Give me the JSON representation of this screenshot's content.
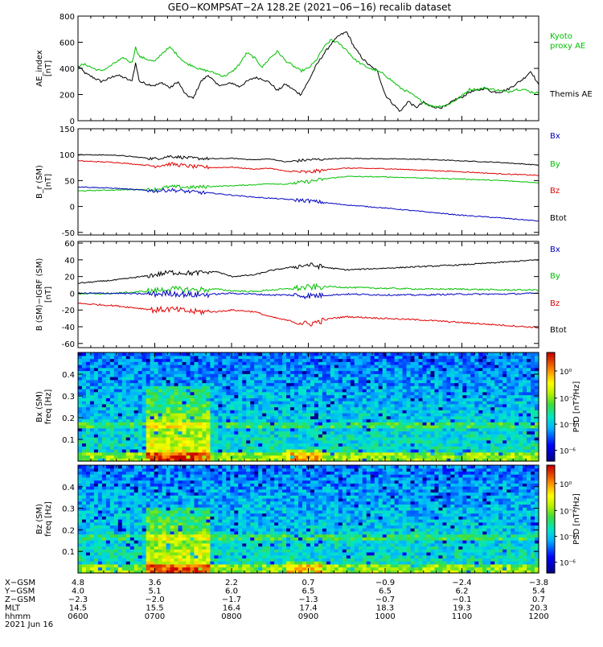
{
  "title": "GEO−KOMPSAT−2A 128.2E (2021−06−16) recalib dataset",
  "colors": {
    "black": "#000000",
    "green": "#00c000",
    "red": "#e00000",
    "blue": "#0000c0"
  },
  "panels": [
    {
      "id": "ae",
      "ylabel_lines": [
        "AE_index",
        "[nT]"
      ],
      "yticks": [
        0,
        200,
        400,
        600,
        800
      ],
      "ylim": [
        0,
        800
      ],
      "legend": [
        {
          "text": "Kyoto",
          "color": "#00c000"
        },
        {
          "text": "proxy AE",
          "color": "#00c000"
        },
        {
          "text": "Themis AE",
          "color": "#000000"
        }
      ]
    },
    {
      "id": "b",
      "ylabel_lines": [
        "B_r (SM)",
        "[nT]"
      ],
      "yticks": [
        -50,
        0,
        50,
        100,
        150
      ],
      "ylim": [
        -55,
        150
      ],
      "legend": [
        {
          "text": "Bx",
          "color": "#0000c0"
        },
        {
          "text": "By",
          "color": "#00c000"
        },
        {
          "text": "Bz",
          "color": "#e00000"
        },
        {
          "text": "Btot",
          "color": "#000000"
        }
      ]
    },
    {
      "id": "db",
      "ylabel_lines": [
        "B (SM)−IGRF (SM)",
        "[nT]"
      ],
      "yticks": [
        -60,
        -40,
        -20,
        0,
        20,
        40,
        60
      ],
      "ylim": [
        -65,
        62
      ],
      "legend": [
        {
          "text": "Bx",
          "color": "#0000c0"
        },
        {
          "text": "By",
          "color": "#00c000"
        },
        {
          "text": "Bz",
          "color": "#e00000"
        },
        {
          "text": "Btot",
          "color": "#000000"
        }
      ]
    },
    {
      "id": "specx",
      "ylabel_lines": [
        "Bx (SM)",
        "freq [Hz]"
      ],
      "yticks": [
        0.1,
        0.2,
        0.3,
        0.4
      ],
      "ylim": [
        0,
        0.5
      ],
      "cbar_label": "PSD [nT²/Hz]",
      "cbar_ticks": [
        "10⁰",
        "10⁻²",
        "10⁻⁴",
        "10⁻⁶"
      ]
    },
    {
      "id": "specz",
      "ylabel_lines": [
        "Bz (SM)",
        "freq [Hz]"
      ],
      "yticks": [
        0.1,
        0.2,
        0.3,
        0.4
      ],
      "ylim": [
        0,
        0.5
      ],
      "cbar_label": "PSD [nT²/Hz]",
      "cbar_ticks": [
        "10⁰",
        "10⁻²",
        "10⁻⁴",
        "10⁻⁶"
      ]
    }
  ],
  "ephemeris": {
    "rows": [
      {
        "label": "X−GSM",
        "values": [
          "4.8",
          "3.6",
          "2.2",
          "0.7",
          "−0.9",
          "−2.4",
          "−3.8"
        ]
      },
      {
        "label": "Y−GSM",
        "values": [
          "4.0",
          "5.1",
          "6.0",
          "6.5",
          "6.5",
          "6.2",
          "5.4"
        ]
      },
      {
        "label": "Z−GSM",
        "values": [
          "−2.3",
          "−2.0",
          "−1.7",
          "−1.3",
          "−0.7",
          "−0.1",
          "0.7"
        ]
      },
      {
        "label": "MLT",
        "values": [
          "14.5",
          "15.5",
          "16.4",
          "17.4",
          "18.3",
          "19.3",
          "20.3"
        ]
      },
      {
        "label": "hhmm",
        "values": [
          "0600",
          "0700",
          "0800",
          "0900",
          "1000",
          "1100",
          "1200"
        ]
      }
    ],
    "date": "2021 Jun 16"
  },
  "chart_data": [
    {
      "type": "line",
      "id": "ae",
      "x_hours": [
        6.0,
        6.1,
        6.2,
        6.3,
        6.4,
        6.5,
        6.6,
        6.7,
        6.75,
        6.8,
        6.9,
        7.0,
        7.1,
        7.2,
        7.3,
        7.4,
        7.5,
        7.6,
        7.7,
        7.8,
        7.9,
        8.0,
        8.1,
        8.2,
        8.3,
        8.4,
        8.5,
        8.6,
        8.7,
        8.8,
        8.9,
        9.0,
        9.1,
        9.2,
        9.3,
        9.4,
        9.5,
        9.6,
        9.7,
        9.8,
        9.9,
        10.0,
        10.1,
        10.2,
        10.3,
        10.4,
        10.5,
        10.6,
        10.7,
        10.8,
        10.9,
        11.0,
        11.1,
        11.2,
        11.3,
        11.4,
        11.5,
        11.6,
        11.7,
        11.8,
        11.9,
        12.0
      ],
      "series": [
        {
          "name": "Themis AE",
          "color": "#000000",
          "values": [
            420,
            360,
            330,
            300,
            320,
            350,
            330,
            300,
            440,
            300,
            280,
            270,
            290,
            250,
            300,
            200,
            170,
            300,
            350,
            280,
            270,
            290,
            260,
            300,
            330,
            320,
            290,
            230,
            280,
            240,
            200,
            300,
            420,
            510,
            590,
            650,
            680,
            560,
            480,
            420,
            380,
            200,
            130,
            70,
            150,
            100,
            140,
            110,
            100,
            110,
            160,
            180,
            220,
            230,
            250,
            220,
            220,
            240,
            280,
            320,
            380,
            270
          ]
        },
        {
          "name": "Kyoto proxy AE",
          "color": "#00c000",
          "values": [
            420,
            430,
            400,
            380,
            410,
            450,
            480,
            440,
            560,
            490,
            470,
            450,
            520,
            560,
            500,
            440,
            420,
            390,
            380,
            360,
            340,
            370,
            430,
            520,
            480,
            410,
            480,
            530,
            460,
            420,
            380,
            400,
            460,
            560,
            620,
            590,
            540,
            470,
            430,
            400,
            380,
            350,
            300,
            250,
            220,
            180,
            140,
            110,
            110,
            120,
            150,
            190,
            240,
            240,
            250,
            240,
            230,
            220,
            240,
            240,
            220,
            210
          ]
        }
      ]
    },
    {
      "type": "line",
      "id": "b",
      "x_hours": [
        6.0,
        6.5,
        7.0,
        7.2,
        7.5,
        7.8,
        8.0,
        8.3,
        8.5,
        8.7,
        9.0,
        9.3,
        9.5,
        10.0,
        10.5,
        11.0,
        11.5,
        12.0
      ],
      "series": [
        {
          "name": "Btot",
          "color": "#000000",
          "values": [
            100,
            99,
            92,
            97,
            93,
            92,
            93,
            90,
            92,
            86,
            90,
            92,
            93,
            92,
            91,
            88,
            85,
            80
          ]
        },
        {
          "name": "Bz",
          "color": "#e00000",
          "values": [
            88,
            85,
            78,
            82,
            77,
            75,
            76,
            72,
            74,
            68,
            66,
            72,
            74,
            73,
            70,
            67,
            63,
            60
          ]
        },
        {
          "name": "By",
          "color": "#00c000",
          "values": [
            30,
            32,
            33,
            38,
            37,
            39,
            40,
            42,
            44,
            43,
            48,
            55,
            58,
            57,
            55,
            53,
            50,
            46
          ]
        },
        {
          "name": "Bx",
          "color": "#0000c0",
          "values": [
            38,
            35,
            30,
            32,
            28,
            25,
            22,
            18,
            16,
            14,
            11,
            6,
            3,
            -3,
            -10,
            -17,
            -22,
            -28
          ]
        }
      ]
    },
    {
      "type": "line",
      "id": "db",
      "x_hours": [
        6.0,
        6.5,
        7.0,
        7.2,
        7.5,
        7.8,
        8.0,
        8.3,
        8.5,
        8.7,
        9.0,
        9.3,
        9.5,
        10.0,
        10.5,
        11.0,
        11.5,
        12.0
      ],
      "series": [
        {
          "name": "Btot",
          "color": "#000000",
          "values": [
            12,
            16,
            22,
            25,
            24,
            26,
            20,
            22,
            27,
            30,
            34,
            30,
            28,
            30,
            32,
            34,
            37,
            40
          ]
        },
        {
          "name": "Bz",
          "color": "#e00000",
          "values": [
            -12,
            -15,
            -20,
            -19,
            -22,
            -22,
            -20,
            -22,
            -28,
            -32,
            -37,
            -30,
            -28,
            -30,
            -32,
            -35,
            -38,
            -41
          ]
        },
        {
          "name": "By",
          "color": "#00c000",
          "values": [
            -1,
            0,
            3,
            5,
            4,
            5,
            3,
            2,
            4,
            5,
            7,
            8,
            7,
            6,
            5,
            5,
            4,
            4
          ]
        },
        {
          "name": "Bx",
          "color": "#0000c0",
          "values": [
            0,
            0,
            -1,
            0,
            -2,
            -1,
            0,
            -1,
            -2,
            -2,
            -3,
            -2,
            -1,
            -2,
            -2,
            -1,
            -1,
            0
          ]
        }
      ]
    },
    {
      "type": "heatmap",
      "id": "specx",
      "ylabel": "freq [Hz]",
      "ylim": [
        0,
        0.5
      ],
      "colorbar": [
        "10⁰",
        "10⁻²",
        "10⁻⁴",
        "10⁻⁶"
      ],
      "burst_hours": [
        6.9,
        7.7
      ],
      "burst_freq_max": 0.35,
      "harmonic_freq": 0.167
    },
    {
      "type": "heatmap",
      "id": "specz",
      "ylabel": "freq [Hz]",
      "ylim": [
        0,
        0.5
      ],
      "colorbar": [
        "10⁰",
        "10⁻²",
        "10⁻⁴",
        "10⁻⁶"
      ],
      "burst_hours": [
        6.9,
        7.7
      ],
      "burst_freq_max": 0.3,
      "harmonic_freq": 0.167
    }
  ]
}
